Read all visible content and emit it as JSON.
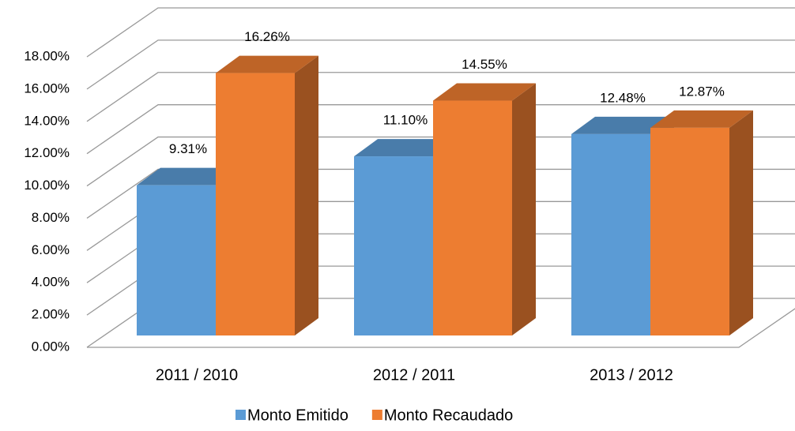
{
  "chart_data": {
    "type": "bar3d",
    "categories": [
      "2011 / 2010",
      "2012 / 2011",
      "2013 / 2012"
    ],
    "series": [
      {
        "name": "Monto Emitido",
        "color": "#5b9bd5",
        "values": [
          9.31,
          11.1,
          12.48
        ],
        "value_labels": [
          "9.31%",
          "11.10%",
          "12.48%"
        ]
      },
      {
        "name": "Monto Recaudado",
        "color": "#ed7d31",
        "values": [
          16.26,
          14.55,
          12.87
        ],
        "value_labels": [
          "16.26%",
          "14.55%",
          "12.87%"
        ]
      }
    ],
    "ylim": [
      0,
      18
    ],
    "yticks": [
      {
        "value": 0,
        "label": "0.00%"
      },
      {
        "value": 2,
        "label": "2.00%"
      },
      {
        "value": 4,
        "label": "4.00%"
      },
      {
        "value": 6,
        "label": "6.00%"
      },
      {
        "value": 8,
        "label": "8.00%"
      },
      {
        "value": 10,
        "label": "10.00%"
      },
      {
        "value": 12,
        "label": "12.00%"
      },
      {
        "value": 14,
        "label": "14.00%"
      },
      {
        "value": 16,
        "label": "16.00%"
      },
      {
        "value": 18,
        "label": "18.00%"
      }
    ],
    "grid": true,
    "legend": "bottom"
  }
}
